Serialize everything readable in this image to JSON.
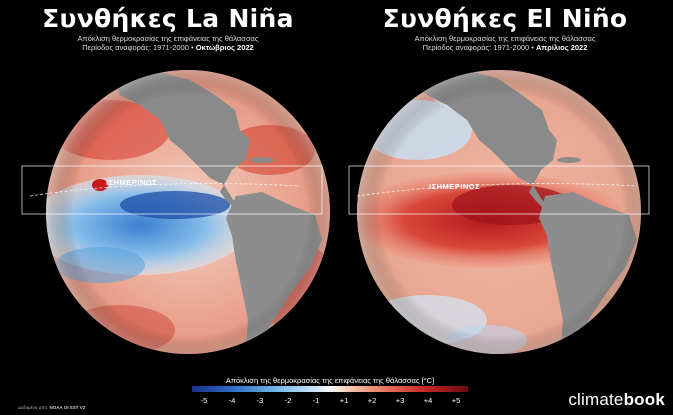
{
  "panels": {
    "lanina": {
      "title": "Συνθήκες La Niña",
      "subtitle": "Απόκλιση θερμοκρασίας της επιφάνειας της θάλασσας",
      "period_prefix": "Περίοδος αναφοράς: 1971-2000 •",
      "period_month": "Οκτώβριος 2022",
      "equator_label": "ΙΣΗΜΕΡΙΝΟΣ"
    },
    "elnino": {
      "title": "Συνθήκες El Niño",
      "subtitle": "Απόκλιση θερμοκρασίας της επιφάνειας της θάλασσας",
      "period_prefix": "Περίοδος αναφοράς: 1971-2000 •",
      "period_month": "Απρίλιος 2022",
      "equator_label": "ΙΣΗΜΕΡΙΝΟΣ"
    }
  },
  "legend": {
    "title": "Απόκλιση της θερμοκρασίας της επιφάνειας της θάλασσας [°C]",
    "ticks": [
      "-5",
      "-4",
      "-3",
      "-2",
      "-1",
      "+1",
      "+2",
      "+3",
      "+4",
      "+5"
    ],
    "colors": {
      "cold": "#1a2f8a",
      "neutral": "#f8f8f8",
      "warm": "#6b0b12"
    }
  },
  "source": {
    "prefix": "Δεδομένα από:",
    "name": "NOAA OI SST V2"
  },
  "brand": {
    "plain": "climate",
    "bold": "book"
  }
}
